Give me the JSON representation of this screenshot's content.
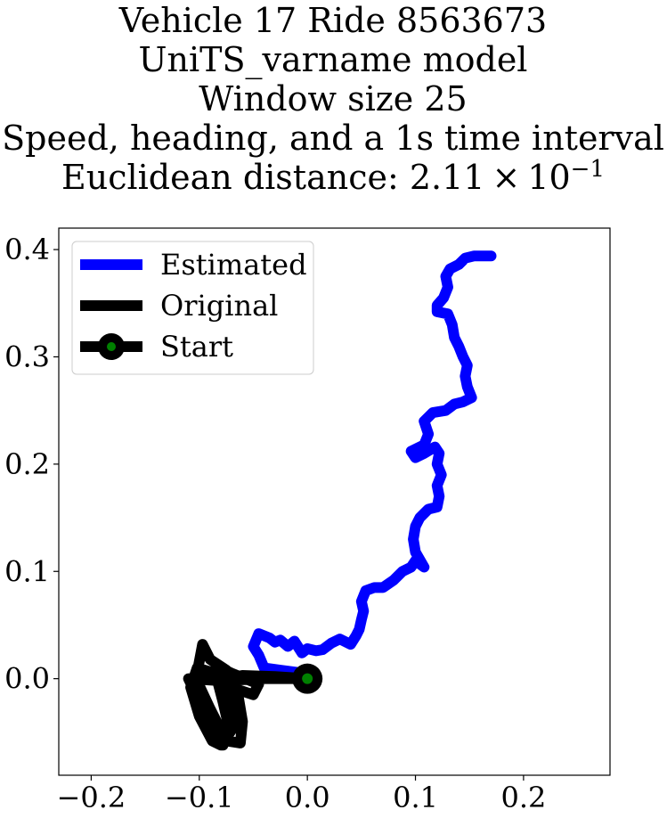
{
  "chart_data": {
    "type": "line",
    "title_lines": [
      "Vehicle 17 Ride 8563673",
      "UniTS_varname model",
      "Window size 25",
      "Speed, heading, and a 1s time interval"
    ],
    "title_distance_prefix": "Euclidean distance: 2.11",
    "title_distance_times": "×",
    "title_distance_base": "10",
    "title_distance_exp": "−1",
    "xlim": [
      -0.23,
      0.28
    ],
    "ylim": [
      -0.09,
      0.42
    ],
    "xticks": [
      -0.2,
      -0.1,
      0.0,
      0.1,
      0.2
    ],
    "xtick_labels": [
      "−0.2",
      "−0.1",
      "0.0",
      "0.1",
      "0.2"
    ],
    "yticks": [
      0.0,
      0.1,
      0.2,
      0.3,
      0.4
    ],
    "ytick_labels": [
      "0.0",
      "0.1",
      "0.2",
      "0.3",
      "0.4"
    ],
    "legend_position": "upper-left",
    "series": [
      {
        "name": "Estimated",
        "color": "#0000ff",
        "points": [
          [
            0.0,
            0.0
          ],
          [
            -0.01,
            0.006
          ],
          [
            -0.025,
            0.008
          ],
          [
            -0.04,
            0.01
          ],
          [
            -0.045,
            0.022
          ],
          [
            -0.05,
            0.03
          ],
          [
            -0.045,
            0.042
          ],
          [
            -0.035,
            0.038
          ],
          [
            -0.03,
            0.034
          ],
          [
            -0.025,
            0.036
          ],
          [
            -0.018,
            0.03
          ],
          [
            -0.012,
            0.035
          ],
          [
            -0.005,
            0.024
          ],
          [
            0.0,
            0.028
          ],
          [
            0.008,
            0.026
          ],
          [
            0.014,
            0.027
          ],
          [
            0.022,
            0.033
          ],
          [
            0.03,
            0.037
          ],
          [
            0.04,
            0.032
          ],
          [
            0.045,
            0.04
          ],
          [
            0.048,
            0.046
          ],
          [
            0.05,
            0.055
          ],
          [
            0.052,
            0.063
          ],
          [
            0.05,
            0.072
          ],
          [
            0.054,
            0.082
          ],
          [
            0.062,
            0.085
          ],
          [
            0.07,
            0.085
          ],
          [
            0.08,
            0.092
          ],
          [
            0.088,
            0.1
          ],
          [
            0.096,
            0.104
          ],
          [
            0.1,
            0.11
          ],
          [
            0.108,
            0.104
          ],
          [
            0.1,
            0.118
          ],
          [
            0.098,
            0.13
          ],
          [
            0.1,
            0.142
          ],
          [
            0.104,
            0.15
          ],
          [
            0.112,
            0.158
          ],
          [
            0.12,
            0.16
          ],
          [
            0.122,
            0.17
          ],
          [
            0.12,
            0.18
          ],
          [
            0.124,
            0.19
          ],
          [
            0.12,
            0.2
          ],
          [
            0.122,
            0.21
          ],
          [
            0.118,
            0.216
          ],
          [
            0.108,
            0.21
          ],
          [
            0.1,
            0.206
          ],
          [
            0.096,
            0.212
          ],
          [
            0.108,
            0.218
          ],
          [
            0.112,
            0.228
          ],
          [
            0.108,
            0.24
          ],
          [
            0.116,
            0.248
          ],
          [
            0.128,
            0.25
          ],
          [
            0.136,
            0.256
          ],
          [
            0.144,
            0.258
          ],
          [
            0.152,
            0.262
          ],
          [
            0.148,
            0.272
          ],
          [
            0.146,
            0.282
          ],
          [
            0.148,
            0.292
          ],
          [
            0.144,
            0.3
          ],
          [
            0.14,
            0.31
          ],
          [
            0.136,
            0.318
          ],
          [
            0.134,
            0.33
          ],
          [
            0.13,
            0.34
          ],
          [
            0.12,
            0.342
          ],
          [
            0.12,
            0.348
          ],
          [
            0.126,
            0.355
          ],
          [
            0.13,
            0.365
          ],
          [
            0.128,
            0.375
          ],
          [
            0.132,
            0.382
          ],
          [
            0.14,
            0.386
          ],
          [
            0.146,
            0.392
          ],
          [
            0.154,
            0.394
          ],
          [
            0.162,
            0.394
          ],
          [
            0.17,
            0.394
          ]
        ]
      },
      {
        "name": "Original",
        "color": "#000000",
        "points": [
          [
            0.0,
            0.0
          ],
          [
            -0.04,
            0.0
          ],
          [
            -0.08,
            -0.002
          ],
          [
            -0.11,
            0.0
          ],
          [
            -0.098,
            -0.025
          ],
          [
            -0.085,
            -0.055
          ],
          [
            -0.078,
            -0.062
          ],
          [
            -0.072,
            -0.048
          ],
          [
            -0.078,
            -0.022
          ],
          [
            -0.085,
            0.005
          ],
          [
            -0.102,
            0.01
          ],
          [
            -0.108,
            -0.008
          ],
          [
            -0.1,
            -0.035
          ],
          [
            -0.088,
            -0.058
          ],
          [
            -0.08,
            -0.062
          ],
          [
            -0.068,
            -0.045
          ],
          [
            -0.07,
            -0.015
          ],
          [
            -0.075,
            0.008
          ],
          [
            -0.09,
            0.018
          ],
          [
            -0.097,
            0.032
          ],
          [
            -0.103,
            0.0
          ],
          [
            -0.09,
            -0.028
          ],
          [
            -0.075,
            -0.058
          ],
          [
            -0.062,
            -0.06
          ],
          [
            -0.06,
            -0.04
          ],
          [
            -0.065,
            -0.01
          ],
          [
            -0.08,
            0.01
          ],
          [
            -0.07,
            0.005
          ],
          [
            -0.045,
            -0.005
          ],
          [
            -0.05,
            -0.015
          ],
          [
            -0.065,
            -0.01
          ],
          [
            -0.075,
            0.0
          ],
          [
            -0.06,
            0.003
          ],
          [
            -0.03,
            0.002
          ],
          [
            0.0,
            0.0
          ]
        ]
      }
    ],
    "start": {
      "name": "Start",
      "x": 0.0,
      "y": 0.0,
      "color": "#000000",
      "inner_color": "#008000"
    }
  }
}
